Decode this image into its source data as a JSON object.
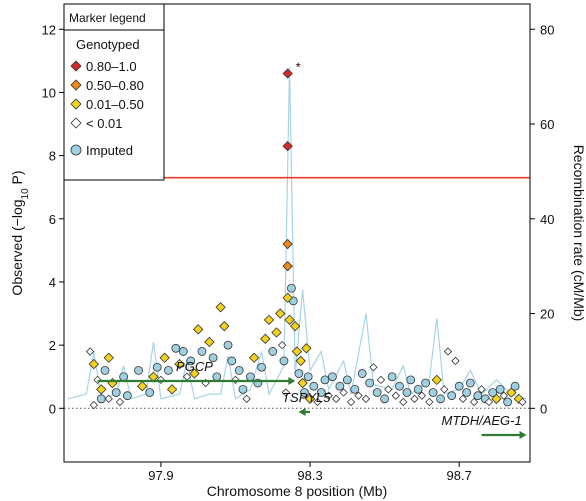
{
  "chart_data": {
    "type": "scatter",
    "xlabel": "Chromosome 8 position (Mb)",
    "ylabel_left": "Observed (−log",
    "ylabel_left_sub": "10",
    "ylabel_left_tail": " P)",
    "ylabel_right": "Recombination rate (cM/Mb)",
    "xlim": [
      97.64,
      98.89
    ],
    "ylim_left": [
      -1.7,
      12.8
    ],
    "ylim_right": [
      -11.33,
      85.33
    ],
    "x_ticks": [
      97.9,
      98.3,
      98.7
    ],
    "x_tick_labels": [
      "97.9",
      "98.3",
      "98.7"
    ],
    "y_left_ticks": [
      0,
      2,
      4,
      6,
      8,
      10,
      12
    ],
    "y_left_tick_labels": [
      "0",
      "2",
      "4",
      "6",
      "8",
      "10",
      "12"
    ],
    "y_right_ticks": [
      0,
      20,
      40,
      60,
      80
    ],
    "y_right_tick_labels": [
      "0",
      "20",
      "40",
      "60",
      "80"
    ],
    "threshold": 7.3,
    "threshold_color": "#e8382c",
    "zero_line": 0,
    "asterisk": "*",
    "legend": {
      "title": "Marker legend",
      "genotyped_label": "Genotyped",
      "items": [
        {
          "label": "0.80–1.0",
          "color": "#d62828"
        },
        {
          "label": "0.50–0.80",
          "color": "#ef8a17"
        },
        {
          "label": "0.01–0.50",
          "color": "#f2d21b"
        },
        {
          "label": "< 0.01",
          "color": "#ffffff"
        }
      ],
      "imputed_label": "Imputed",
      "imputed_color": "#9fd0e2"
    },
    "genes": [
      {
        "name": "PGCP",
        "start": 97.73,
        "end": 98.25,
        "strand": "+",
        "label_side": "above"
      },
      {
        "name": "TSPYL5",
        "start": 98.28,
        "end": 98.3,
        "strand": "-",
        "label_side": "above"
      },
      {
        "name": "MTDH/AEG-1",
        "start": 98.76,
        "end": 98.87,
        "strand": "+",
        "label_side": "above"
      }
    ],
    "gene_color": "#2e7d32",
    "recomb_color": "#a8d4e6",
    "recombination": [
      [
        97.65,
        2
      ],
      [
        97.7,
        3
      ],
      [
        97.72,
        12
      ],
      [
        97.74,
        2
      ],
      [
        97.78,
        3
      ],
      [
        97.8,
        9
      ],
      [
        97.82,
        2
      ],
      [
        97.86,
        3
      ],
      [
        97.88,
        14
      ],
      [
        97.9,
        2
      ],
      [
        97.95,
        3
      ],
      [
        97.97,
        10
      ],
      [
        97.99,
        2
      ],
      [
        98.03,
        3
      ],
      [
        98.06,
        3
      ],
      [
        98.08,
        11
      ],
      [
        98.1,
        2
      ],
      [
        98.14,
        4
      ],
      [
        98.17,
        12
      ],
      [
        98.19,
        3
      ],
      [
        98.21,
        6
      ],
      [
        98.23,
        9
      ],
      [
        98.245,
        72
      ],
      [
        98.26,
        7
      ],
      [
        98.28,
        25
      ],
      [
        98.3,
        8
      ],
      [
        98.33,
        12
      ],
      [
        98.35,
        4
      ],
      [
        98.39,
        10
      ],
      [
        98.41,
        3
      ],
      [
        98.45,
        20
      ],
      [
        98.47,
        5
      ],
      [
        98.52,
        4
      ],
      [
        98.55,
        9
      ],
      [
        98.57,
        3
      ],
      [
        98.62,
        6
      ],
      [
        98.64,
        19
      ],
      [
        98.66,
        3
      ],
      [
        98.7,
        4
      ],
      [
        98.73,
        8
      ],
      [
        98.76,
        3
      ],
      [
        98.8,
        6
      ],
      [
        98.84,
        3
      ],
      [
        98.88,
        2
      ]
    ],
    "series_top_points": [
      {
        "x": 98.24,
        "y": 10.6,
        "cat": 0
      },
      {
        "x": 98.24,
        "y": 8.3,
        "cat": 0
      },
      {
        "x": 98.24,
        "y": 5.2,
        "cat": 1
      },
      {
        "x": 98.24,
        "y": 4.5,
        "cat": 1
      },
      {
        "x": 98.24,
        "y": 3.5,
        "cat": 2
      }
    ],
    "points": [
      {
        "x": 97.71,
        "y": 1.8,
        "cat": 3
      },
      {
        "x": 97.72,
        "y": 1.4,
        "cat": 2
      },
      {
        "x": 97.73,
        "y": 0.9,
        "cat": 3
      },
      {
        "x": 97.74,
        "y": 0.6,
        "cat": 2
      },
      {
        "x": 97.75,
        "y": 1.2,
        "cat": 4
      },
      {
        "x": 97.76,
        "y": 0.3,
        "cat": 3
      },
      {
        "x": 97.77,
        "y": 0.8,
        "cat": 2
      },
      {
        "x": 97.78,
        "y": 0.5,
        "cat": 4
      },
      {
        "x": 97.79,
        "y": 0.2,
        "cat": 3
      },
      {
        "x": 97.8,
        "y": 1.0,
        "cat": 4
      },
      {
        "x": 97.72,
        "y": 0.1,
        "cat": 3
      },
      {
        "x": 97.74,
        "y": 0.3,
        "cat": 4
      },
      {
        "x": 97.76,
        "y": 1.6,
        "cat": 2
      },
      {
        "x": 97.81,
        "y": 0.4,
        "cat": 4
      },
      {
        "x": 97.84,
        "y": 1.2,
        "cat": 4
      },
      {
        "x": 97.85,
        "y": 0.7,
        "cat": 2
      },
      {
        "x": 97.87,
        "y": 0.5,
        "cat": 4
      },
      {
        "x": 97.88,
        "y": 1.0,
        "cat": 2
      },
      {
        "x": 97.89,
        "y": 1.3,
        "cat": 4
      },
      {
        "x": 97.9,
        "y": 0.9,
        "cat": 3
      },
      {
        "x": 97.91,
        "y": 1.6,
        "cat": 2
      },
      {
        "x": 97.92,
        "y": 1.2,
        "cat": 4
      },
      {
        "x": 97.93,
        "y": 0.6,
        "cat": 2
      },
      {
        "x": 97.94,
        "y": 1.9,
        "cat": 4
      },
      {
        "x": 97.95,
        "y": 1.4,
        "cat": 2
      },
      {
        "x": 97.96,
        "y": 1.8,
        "cat": 4
      },
      {
        "x": 97.97,
        "y": 1.0,
        "cat": 3
      },
      {
        "x": 97.98,
        "y": 1.5,
        "cat": 4
      },
      {
        "x": 97.99,
        "y": 1.1,
        "cat": 2
      },
      {
        "x": 98.0,
        "y": 2.5,
        "cat": 2
      },
      {
        "x": 98.01,
        "y": 1.8,
        "cat": 4
      },
      {
        "x": 98.02,
        "y": 0.8,
        "cat": 3
      },
      {
        "x": 98.03,
        "y": 2.1,
        "cat": 2
      },
      {
        "x": 98.04,
        "y": 1.6,
        "cat": 4
      },
      {
        "x": 98.05,
        "y": 1.0,
        "cat": 4
      },
      {
        "x": 98.06,
        "y": 3.2,
        "cat": 2
      },
      {
        "x": 98.07,
        "y": 2.6,
        "cat": 2
      },
      {
        "x": 98.08,
        "y": 2.0,
        "cat": 4
      },
      {
        "x": 98.09,
        "y": 1.5,
        "cat": 4
      },
      {
        "x": 98.1,
        "y": 0.9,
        "cat": 3
      },
      {
        "x": 98.11,
        "y": 1.2,
        "cat": 4
      },
      {
        "x": 98.12,
        "y": 0.6,
        "cat": 4
      },
      {
        "x": 98.13,
        "y": 0.3,
        "cat": 3
      },
      {
        "x": 98.14,
        "y": 1.0,
        "cat": 4
      },
      {
        "x": 98.15,
        "y": 1.6,
        "cat": 2
      },
      {
        "x": 98.16,
        "y": 0.8,
        "cat": 4
      },
      {
        "x": 98.17,
        "y": 1.3,
        "cat": 4
      },
      {
        "x": 98.18,
        "y": 2.2,
        "cat": 2
      },
      {
        "x": 98.19,
        "y": 2.8,
        "cat": 2
      },
      {
        "x": 98.2,
        "y": 1.8,
        "cat": 4
      },
      {
        "x": 98.21,
        "y": 2.4,
        "cat": 2
      },
      {
        "x": 98.22,
        "y": 3.0,
        "cat": 2
      },
      {
        "x": 98.23,
        "y": 1.5,
        "cat": 4
      },
      {
        "x": 98.225,
        "y": 2.0,
        "cat": 3
      },
      {
        "x": 98.235,
        "y": 0.5,
        "cat": 3
      },
      {
        "x": 98.245,
        "y": 2.8,
        "cat": 2
      },
      {
        "x": 98.25,
        "y": 3.8,
        "cat": 4
      },
      {
        "x": 98.255,
        "y": 3.4,
        "cat": 4
      },
      {
        "x": 98.26,
        "y": 2.6,
        "cat": 2
      },
      {
        "x": 98.265,
        "y": 1.8,
        "cat": 2
      },
      {
        "x": 98.27,
        "y": 1.1,
        "cat": 4
      },
      {
        "x": 98.275,
        "y": 1.5,
        "cat": 2
      },
      {
        "x": 98.28,
        "y": 0.8,
        "cat": 2
      },
      {
        "x": 98.285,
        "y": 0.5,
        "cat": 4
      },
      {
        "x": 98.29,
        "y": 1.9,
        "cat": 2
      },
      {
        "x": 98.295,
        "y": 1.0,
        "cat": 4
      },
      {
        "x": 98.3,
        "y": 0.3,
        "cat": 2
      },
      {
        "x": 98.31,
        "y": 0.7,
        "cat": 4
      },
      {
        "x": 98.32,
        "y": 0.2,
        "cat": 3
      },
      {
        "x": 98.33,
        "y": 0.5,
        "cat": 4
      },
      {
        "x": 98.34,
        "y": 0.9,
        "cat": 4
      },
      {
        "x": 98.35,
        "y": 0.4,
        "cat": 3
      },
      {
        "x": 98.36,
        "y": 1.0,
        "cat": 4
      },
      {
        "x": 98.37,
        "y": 0.3,
        "cat": 3
      },
      {
        "x": 98.38,
        "y": 0.7,
        "cat": 4
      },
      {
        "x": 98.39,
        "y": 0.5,
        "cat": 3
      },
      {
        "x": 98.4,
        "y": 0.9,
        "cat": 4
      },
      {
        "x": 98.41,
        "y": 0.2,
        "cat": 3
      },
      {
        "x": 98.42,
        "y": 0.6,
        "cat": 4
      },
      {
        "x": 98.43,
        "y": 0.4,
        "cat": 3
      },
      {
        "x": 98.44,
        "y": 1.1,
        "cat": 4
      },
      {
        "x": 98.45,
        "y": 0.3,
        "cat": 3
      },
      {
        "x": 98.46,
        "y": 0.8,
        "cat": 4
      },
      {
        "x": 98.47,
        "y": 1.3,
        "cat": 3
      },
      {
        "x": 98.48,
        "y": 0.5,
        "cat": 4
      },
      {
        "x": 98.49,
        "y": 0.9,
        "cat": 3
      },
      {
        "x": 98.5,
        "y": 0.3,
        "cat": 4
      },
      {
        "x": 98.51,
        "y": 0.6,
        "cat": 3
      },
      {
        "x": 98.52,
        "y": 1.0,
        "cat": 4
      },
      {
        "x": 98.53,
        "y": 0.4,
        "cat": 3
      },
      {
        "x": 98.54,
        "y": 0.7,
        "cat": 4
      },
      {
        "x": 98.55,
        "y": 0.2,
        "cat": 3
      },
      {
        "x": 98.56,
        "y": 0.5,
        "cat": 4
      },
      {
        "x": 98.57,
        "y": 0.9,
        "cat": 4
      },
      {
        "x": 98.58,
        "y": 0.3,
        "cat": 3
      },
      {
        "x": 98.59,
        "y": 0.6,
        "cat": 4
      },
      {
        "x": 98.6,
        "y": 0.4,
        "cat": 3
      },
      {
        "x": 98.61,
        "y": 0.8,
        "cat": 4
      },
      {
        "x": 98.62,
        "y": 0.2,
        "cat": 3
      },
      {
        "x": 98.63,
        "y": 0.5,
        "cat": 4
      },
      {
        "x": 98.64,
        "y": 0.9,
        "cat": 2
      },
      {
        "x": 98.65,
        "y": 0.3,
        "cat": 4
      },
      {
        "x": 98.66,
        "y": 0.6,
        "cat": 3
      },
      {
        "x": 98.67,
        "y": 1.8,
        "cat": 3
      },
      {
        "x": 98.68,
        "y": 0.4,
        "cat": 4
      },
      {
        "x": 98.69,
        "y": 1.5,
        "cat": 3
      },
      {
        "x": 98.7,
        "y": 0.7,
        "cat": 4
      },
      {
        "x": 98.71,
        "y": 0.3,
        "cat": 3
      },
      {
        "x": 98.72,
        "y": 0.5,
        "cat": 4
      },
      {
        "x": 98.73,
        "y": 0.8,
        "cat": 4
      },
      {
        "x": 98.74,
        "y": 0.2,
        "cat": 3
      },
      {
        "x": 98.75,
        "y": 0.4,
        "cat": 4
      },
      {
        "x": 98.76,
        "y": 0.6,
        "cat": 3
      },
      {
        "x": 98.77,
        "y": 0.3,
        "cat": 4
      },
      {
        "x": 98.78,
        "y": 0.2,
        "cat": 3
      },
      {
        "x": 98.79,
        "y": 0.5,
        "cat": 4
      },
      {
        "x": 98.8,
        "y": 0.3,
        "cat": 2
      },
      {
        "x": 98.81,
        "y": 0.6,
        "cat": 4
      },
      {
        "x": 98.82,
        "y": 0.4,
        "cat": 3
      },
      {
        "x": 98.83,
        "y": 0.2,
        "cat": 4
      },
      {
        "x": 98.84,
        "y": 0.5,
        "cat": 2
      },
      {
        "x": 98.85,
        "y": 0.7,
        "cat": 4
      },
      {
        "x": 98.86,
        "y": 0.3,
        "cat": 2
      },
      {
        "x": 98.87,
        "y": 0.2,
        "cat": 3
      }
    ]
  }
}
